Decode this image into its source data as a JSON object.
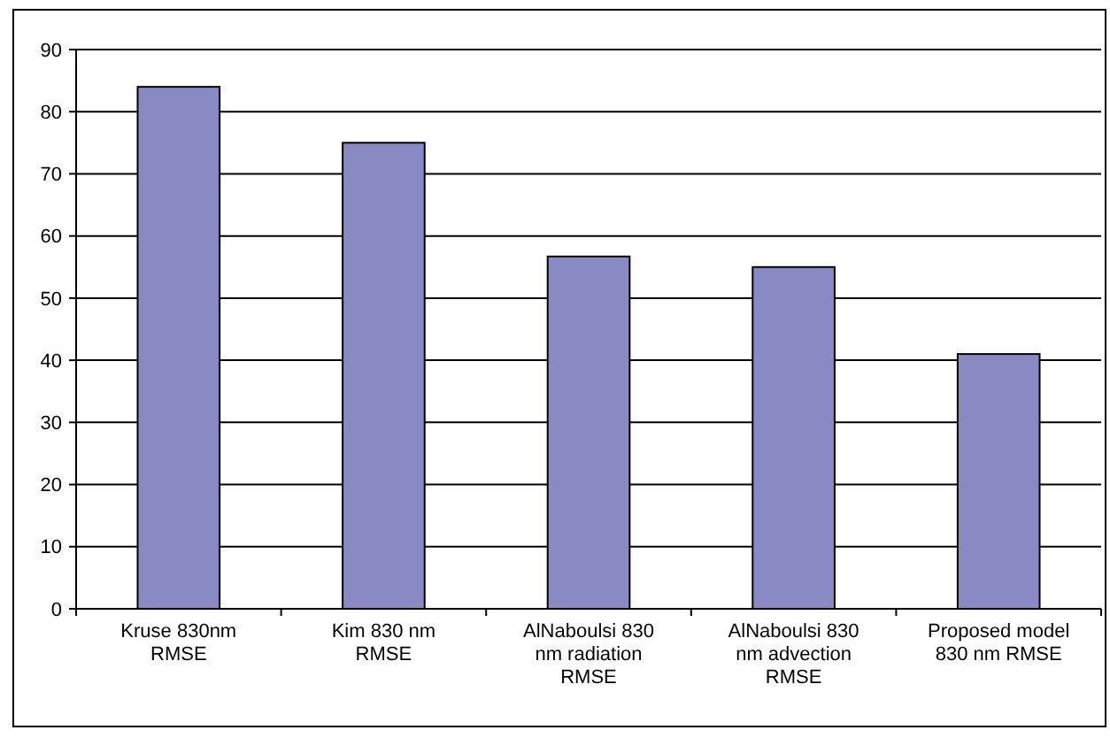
{
  "chart_data": {
    "type": "bar",
    "categories": [
      "Kruse 830nm RMSE",
      "Kim 830 nm RMSE",
      "AlNaboulsi 830 nm radiation RMSE",
      "AlNaboulsi 830 nm advection RMSE",
      "Proposed model 830 nm RMSE"
    ],
    "values": [
      84,
      75,
      56.7,
      55,
      41
    ],
    "color": "#8989c3",
    "ylim": [
      0,
      90
    ],
    "yticks": [
      0,
      10,
      20,
      30,
      40,
      50,
      60,
      70,
      80,
      90
    ],
    "grid": "y"
  }
}
